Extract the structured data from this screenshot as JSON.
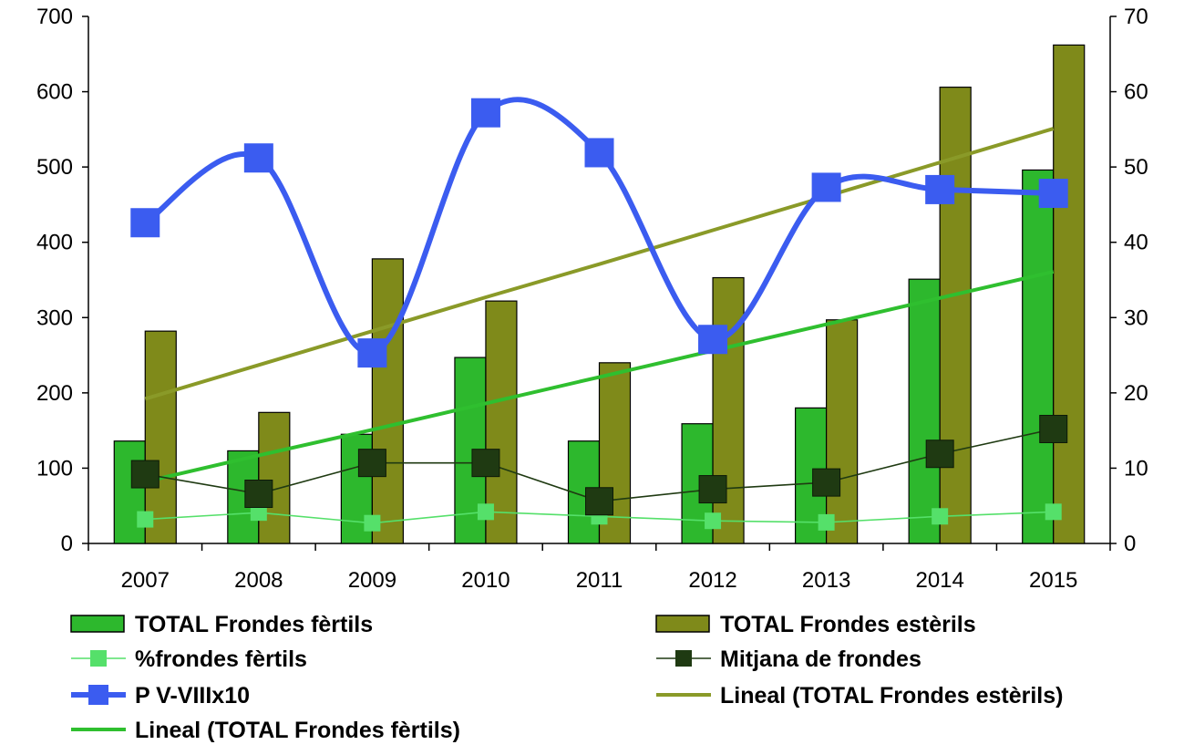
{
  "chart_data": {
    "type": "bar",
    "categories": [
      "2007",
      "2008",
      "2009",
      "2010",
      "2011",
      "2012",
      "2013",
      "2014",
      "2015"
    ],
    "y_left": {
      "ylim": [
        0,
        700
      ],
      "ticks": [
        "0",
        "100",
        "200",
        "300",
        "400",
        "500",
        "600",
        "700"
      ]
    },
    "y_right": {
      "ylim": [
        0,
        70
      ],
      "ticks": [
        "0",
        "10",
        "20",
        "30",
        "40",
        "50",
        "60",
        "70"
      ]
    },
    "grid": false,
    "legend_position": "bottom",
    "series": [
      {
        "name": "TOTAL Frondes fèrtils",
        "kind": "bar",
        "axis": "left",
        "color": "#2db82d",
        "values": [
          136,
          123,
          145,
          247,
          136,
          159,
          180,
          351,
          496
        ]
      },
      {
        "name": "TOTAL Frondes estèrils",
        "kind": "bar",
        "axis": "left",
        "color": "#7f8a1a",
        "values": [
          282,
          174,
          378,
          322,
          240,
          353,
          297,
          606,
          662
        ]
      },
      {
        "name": "%frondes fèrtils",
        "kind": "line-marker",
        "axis": "right",
        "color": "#55e06a",
        "values": [
          3.2,
          4.1,
          2.7,
          4.2,
          3.6,
          3.0,
          2.8,
          3.6,
          4.2
        ]
      },
      {
        "name": "Mitjana de frondes",
        "kind": "line-marker",
        "axis": "right",
        "color": "#1f3a12",
        "values": [
          9.2,
          6.6,
          10.7,
          10.7,
          5.6,
          7.2,
          8.1,
          11.9,
          15.2
        ]
      },
      {
        "name": "P V-VIIIx10",
        "kind": "smooth-line-marker",
        "axis": "right",
        "color": "#3b5cf0",
        "values": [
          42.6,
          51.2,
          25.3,
          57.2,
          51.9,
          27.1,
          47.3,
          47.0,
          46.5
        ]
      },
      {
        "name": "Lineal (TOTAL Frondes estèrils)",
        "kind": "trend",
        "axis": "left",
        "color": "#8a9a28",
        "values": [
          192,
          237,
          282,
          327,
          371,
          416,
          461,
          506,
          551
        ]
      },
      {
        "name": "Lineal (TOTAL Frondes fèrtils)",
        "kind": "trend",
        "axis": "left",
        "color": "#2fbf2f",
        "values": [
          82,
          117,
          151,
          186,
          221,
          256,
          291,
          326,
          361
        ]
      }
    ],
    "legend": [
      {
        "label": "TOTAL Frondes fèrtils",
        "kind": "bar",
        "color": "#2db82d"
      },
      {
        "label": "TOTAL Frondes estèrils",
        "kind": "bar",
        "color": "#7f8a1a"
      },
      {
        "label": "%frondes fèrtils",
        "kind": "line-marker",
        "color": "#55e06a"
      },
      {
        "label": "Mitjana de frondes",
        "kind": "line-marker",
        "color": "#1f3a12"
      },
      {
        "label": "P V-VIIIx10",
        "kind": "line-marker-thick",
        "color": "#3b5cf0"
      },
      {
        "label": "Lineal (TOTAL Frondes estèrils)",
        "kind": "line",
        "color": "#8a9a28"
      },
      {
        "label": "Lineal (TOTAL Frondes fèrtils)",
        "kind": "line",
        "color": "#2fbf2f"
      }
    ]
  }
}
